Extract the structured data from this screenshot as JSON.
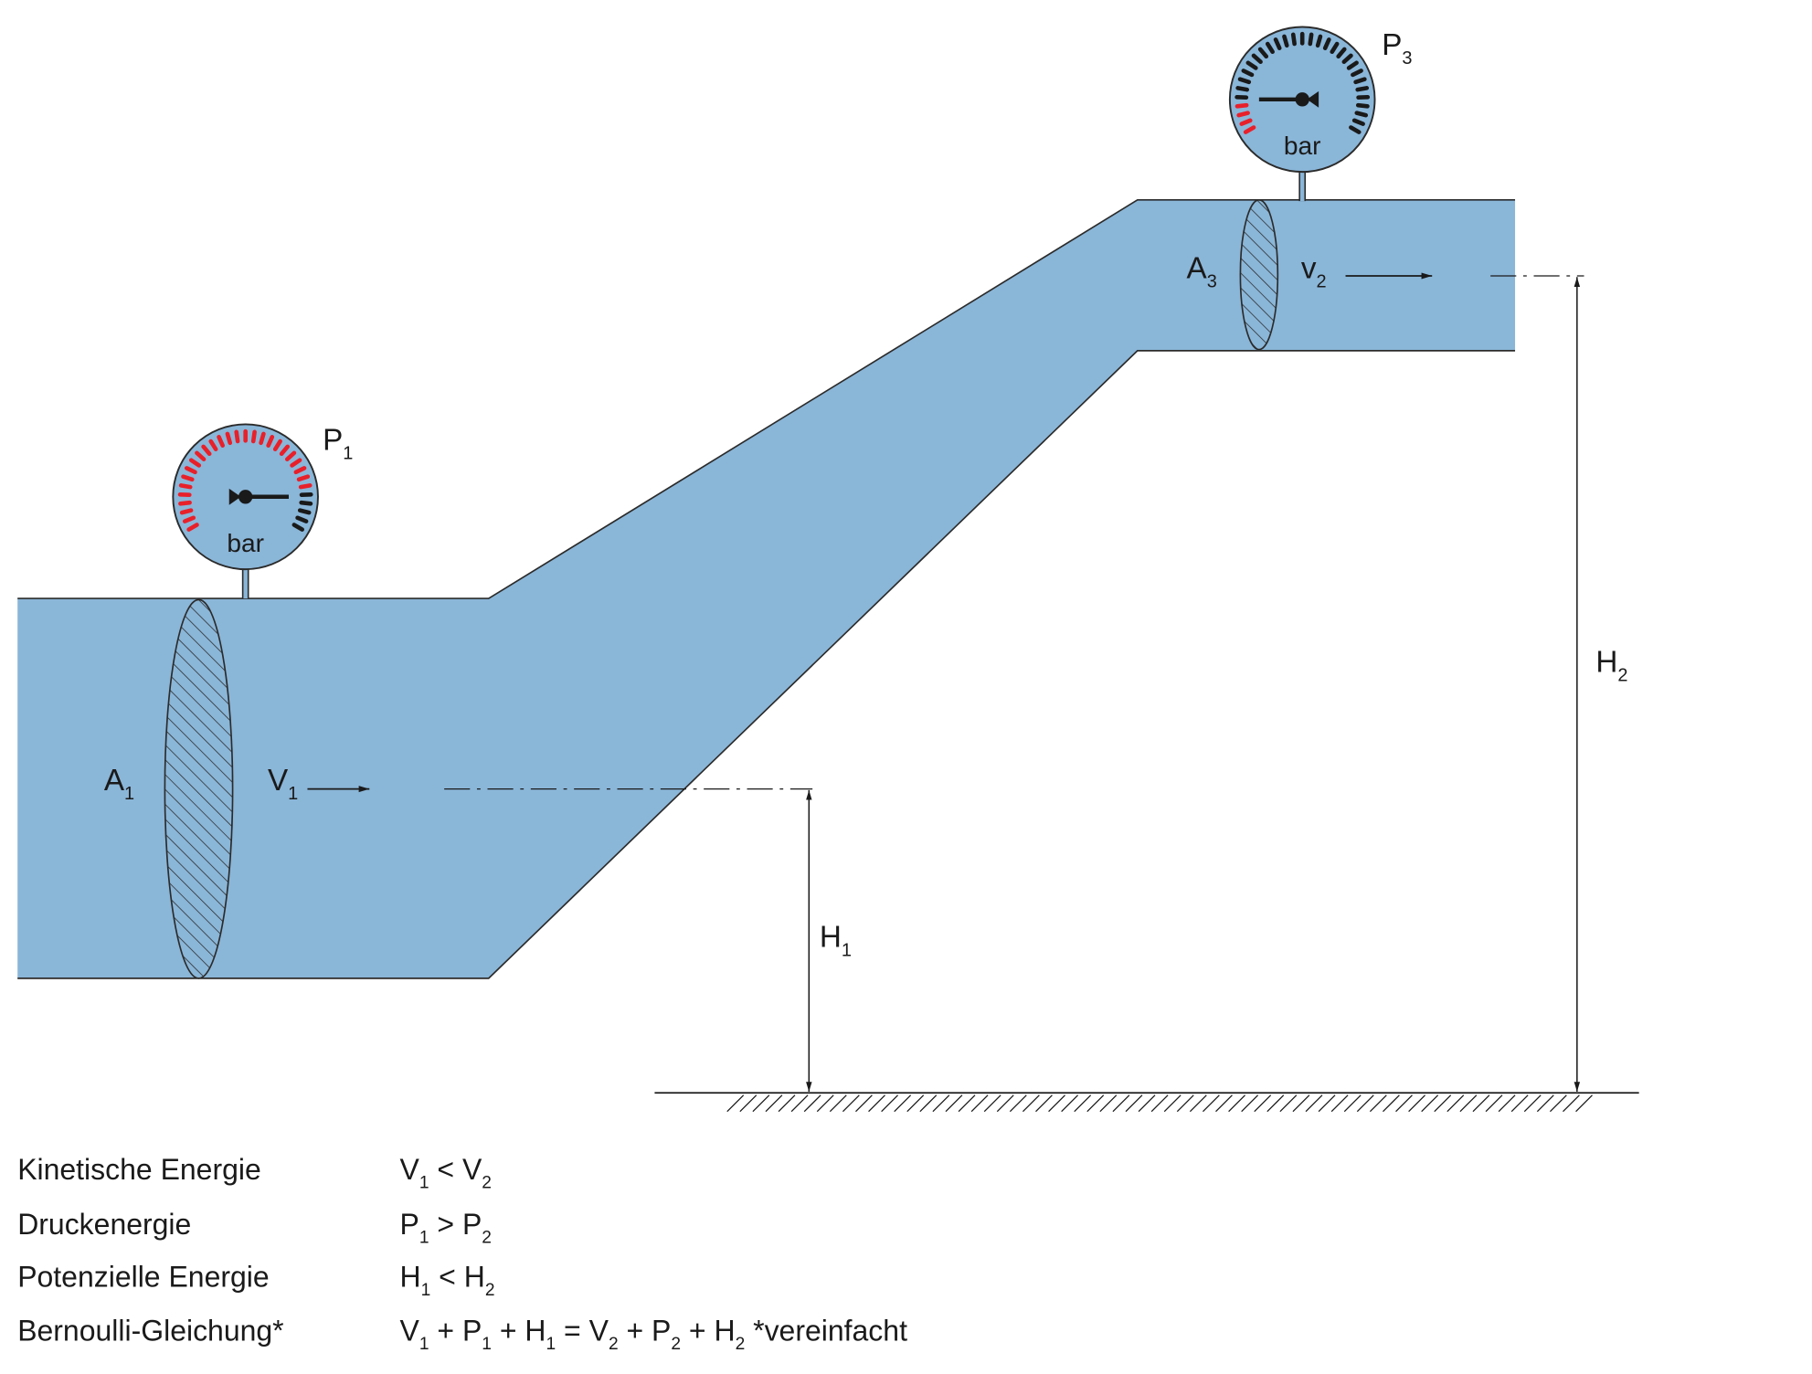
{
  "colors": {
    "pipe_fill": "#8ab6d8",
    "outline": "#2b2b2b",
    "gauge_red": "#e8202a",
    "gauge_dark": "#1a1a1a"
  },
  "gauges": [
    {
      "id": "p1",
      "label": {
        "t": "P",
        "s": "1"
      },
      "unit": "bar",
      "needle": "right",
      "red_ticks": "most",
      "icon": "pressure-gauge-icon"
    },
    {
      "id": "p3",
      "label": {
        "t": "P",
        "s": "3"
      },
      "unit": "bar",
      "needle": "left",
      "red_ticks": "few",
      "icon": "pressure-gauge-icon"
    }
  ],
  "labels": {
    "a1": {
      "t": "A",
      "s": "1"
    },
    "v1": {
      "t": "V",
      "s": "1"
    },
    "a3": {
      "t": "A",
      "s": "3"
    },
    "v2": {
      "t": "v",
      "s": "2"
    },
    "h1": {
      "t": "H",
      "s": "1"
    },
    "h2": {
      "t": "H",
      "s": "2"
    }
  },
  "legend": [
    {
      "term": "Kinetische Energie",
      "formula": [
        {
          "t": "V",
          "s": "1"
        },
        {
          "t": " < "
        },
        {
          "t": "V",
          "s": "2"
        }
      ]
    },
    {
      "term": "Druckenergie",
      "formula": [
        {
          "t": "P",
          "s": "1"
        },
        {
          "t": " > "
        },
        {
          "t": "P",
          "s": "2"
        }
      ]
    },
    {
      "term": "Potenzielle Energie",
      "formula": [
        {
          "t": "H",
          "s": "1"
        },
        {
          "t": " < "
        },
        {
          "t": "H",
          "s": "2"
        }
      ]
    },
    {
      "term": "Bernoulli-Gleichung*",
      "formula": [
        {
          "t": "V",
          "s": "1"
        },
        {
          "t": " + "
        },
        {
          "t": "P",
          "s": "1"
        },
        {
          "t": " + "
        },
        {
          "t": "H",
          "s": "1"
        },
        {
          "t": " = "
        },
        {
          "t": "V",
          "s": "2"
        },
        {
          "t": " + "
        },
        {
          "t": "P",
          "s": "2"
        },
        {
          "t": " + "
        },
        {
          "t": "H",
          "s": "2"
        },
        {
          "t": "   *vereinfacht"
        }
      ]
    }
  ]
}
